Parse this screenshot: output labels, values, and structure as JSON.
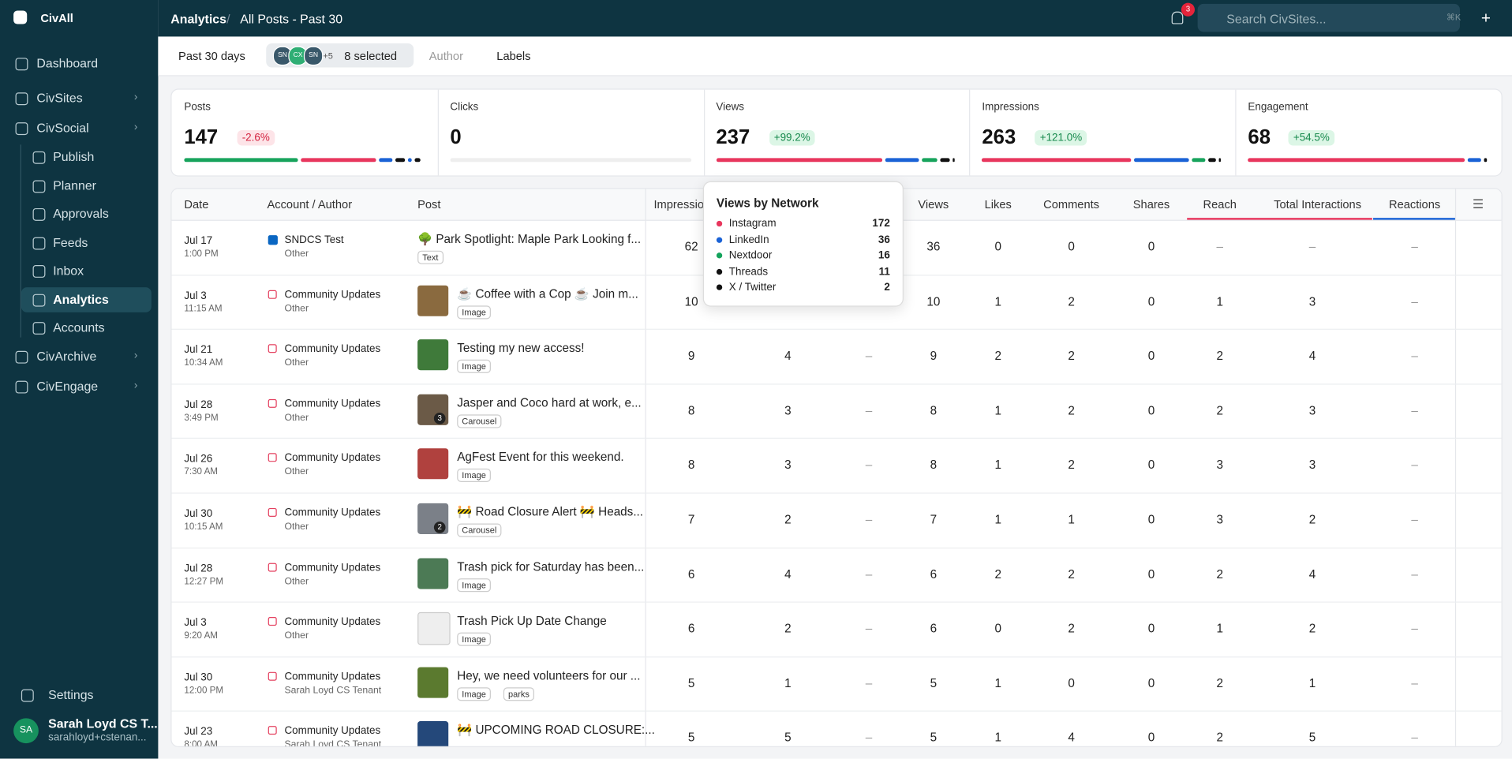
{
  "sidebar": {
    "brand": "CivAll",
    "nav": [
      "Dashboard",
      "CivSites",
      "CivSocial"
    ],
    "sub_nav": [
      "Publish",
      "Planner",
      "Approvals",
      "Feeds",
      "Inbox",
      "Analytics",
      "Accounts"
    ],
    "nav_bottom": [
      "CivArchive",
      "CivEngage"
    ],
    "settings": "Settings",
    "user": {
      "initials": "SA",
      "name": "Sarah Loyd CS T...",
      "email": "sarahloyd+cstenan..."
    }
  },
  "topbar": {
    "breadcrumb": [
      "Analytics",
      "All Posts - Past 30"
    ],
    "badge": "3",
    "search": "Search CivSites...",
    "shortcut": "⌘K"
  },
  "filters": {
    "range": "Past 30 days",
    "avatars": [
      "SN",
      "CX",
      "SN"
    ],
    "more": "+5",
    "selected": "8 selected",
    "author": "Author",
    "labels": "Labels"
  },
  "stats": [
    {
      "label": "Posts",
      "value": "147",
      "change": "-2.6%"
    },
    {
      "label": "Clicks",
      "value": "0"
    },
    {
      "label": "Views",
      "value": "237",
      "change": "+99.2%"
    },
    {
      "label": "Impressions",
      "value": "263",
      "change": "+121.0%"
    },
    {
      "label": "Engagement",
      "value": "68",
      "change": "+54.5%"
    }
  ],
  "table": {
    "columns": [
      "Date",
      "Account / Author",
      "Post",
      "Impressions",
      null,
      null,
      "Views",
      "Likes",
      "Comments",
      "Shares",
      "Reach",
      "Total Interactions",
      "Reactions"
    ],
    "rows": [
      {
        "date": "Jul 17",
        "time": "1:00 PM",
        "account": "SNDCS Test",
        "author": "Other",
        "post": "🌳 Park Spotlight: Maple Park Looking f...",
        "tags": [
          "Text"
        ],
        "cells": [
          62,
          null,
          null,
          36,
          0,
          0,
          0,
          "–",
          "–",
          "–"
        ]
      },
      {
        "date": "Jul 3",
        "time": "11:15 AM",
        "account": "Community Updates",
        "author": "Other",
        "post": "☕ Coffee with a Cop ☕ Join m...",
        "tags": [
          "Image"
        ],
        "cells": [
          10,
          null,
          null,
          10,
          1,
          2,
          0,
          1,
          3,
          "–"
        ]
      },
      {
        "date": "Jul 21",
        "time": "10:34 AM",
        "account": "Community Updates",
        "author": "Other",
        "post": "Testing my new access!",
        "tags": [
          "Image"
        ],
        "cells": [
          9,
          4,
          "–",
          9,
          2,
          2,
          0,
          2,
          4,
          "–"
        ]
      },
      {
        "date": "Jul 28",
        "time": "3:49 PM",
        "account": "Community Updates",
        "author": "Other",
        "post": "Jasper and Coco hard at work, e...",
        "tags": [
          "Carousel"
        ],
        "thumb_count": "3",
        "cells": [
          8,
          3,
          "–",
          8,
          1,
          2,
          0,
          2,
          3,
          "–"
        ]
      },
      {
        "date": "Jul 26",
        "time": "7:30 AM",
        "account": "Community Updates",
        "author": "Other",
        "post": "AgFest Event for this weekend.",
        "tags": [
          "Image"
        ],
        "cells": [
          8,
          3,
          "–",
          8,
          1,
          2,
          0,
          3,
          3,
          "–"
        ]
      },
      {
        "date": "Jul 30",
        "time": "10:15 AM",
        "account": "Community Updates",
        "author": "Other",
        "post": "🚧 Road Closure Alert 🚧 Heads...",
        "tags": [
          "Carousel"
        ],
        "thumb_count": "2",
        "cells": [
          7,
          2,
          "–",
          7,
          1,
          1,
          0,
          3,
          2,
          "–"
        ]
      },
      {
        "date": "Jul 28",
        "time": "12:27 PM",
        "account": "Community Updates",
        "author": "Other",
        "post": "Trash pick for Saturday has been...",
        "tags": [
          "Image"
        ],
        "cells": [
          6,
          4,
          "–",
          6,
          2,
          2,
          0,
          2,
          4,
          "–"
        ]
      },
      {
        "date": "Jul 3",
        "time": "9:20 AM",
        "account": "Community Updates",
        "author": "Other",
        "post": "Trash Pick Up Date Change",
        "tags": [
          "Image"
        ],
        "cells": [
          6,
          2,
          "–",
          6,
          0,
          2,
          0,
          1,
          2,
          "–"
        ]
      },
      {
        "date": "Jul 30",
        "time": "12:00 PM",
        "account": "Community Updates",
        "author": "Sarah Loyd CS Tenant",
        "post": "Hey, we need volunteers for our ...",
        "tags": [
          "Image",
          "parks"
        ],
        "cells": [
          5,
          1,
          "–",
          5,
          1,
          0,
          0,
          2,
          1,
          "–"
        ]
      },
      {
        "date": "Jul 23",
        "time": "8:00 AM",
        "account": "Community Updates",
        "author": "Sarah Loyd CS Tenant",
        "post": "🚧 UPCOMING ROAD CLOSURE:...",
        "tags": [],
        "cells": [
          5,
          5,
          "–",
          5,
          1,
          4,
          0,
          2,
          5,
          "–"
        ]
      }
    ]
  },
  "tooltip": {
    "title": "Views by Network",
    "items": [
      {
        "name": "Instagram",
        "color": "#e8365d",
        "value": 172
      },
      {
        "name": "LinkedIn",
        "color": "#1a62d6",
        "value": 36
      },
      {
        "name": "Nextdoor",
        "color": "#14a35c",
        "value": 16
      },
      {
        "name": "Threads",
        "color": "#111111",
        "value": 11
      },
      {
        "name": "X / Twitter",
        "color": "#111111",
        "value": 2
      }
    ]
  }
}
